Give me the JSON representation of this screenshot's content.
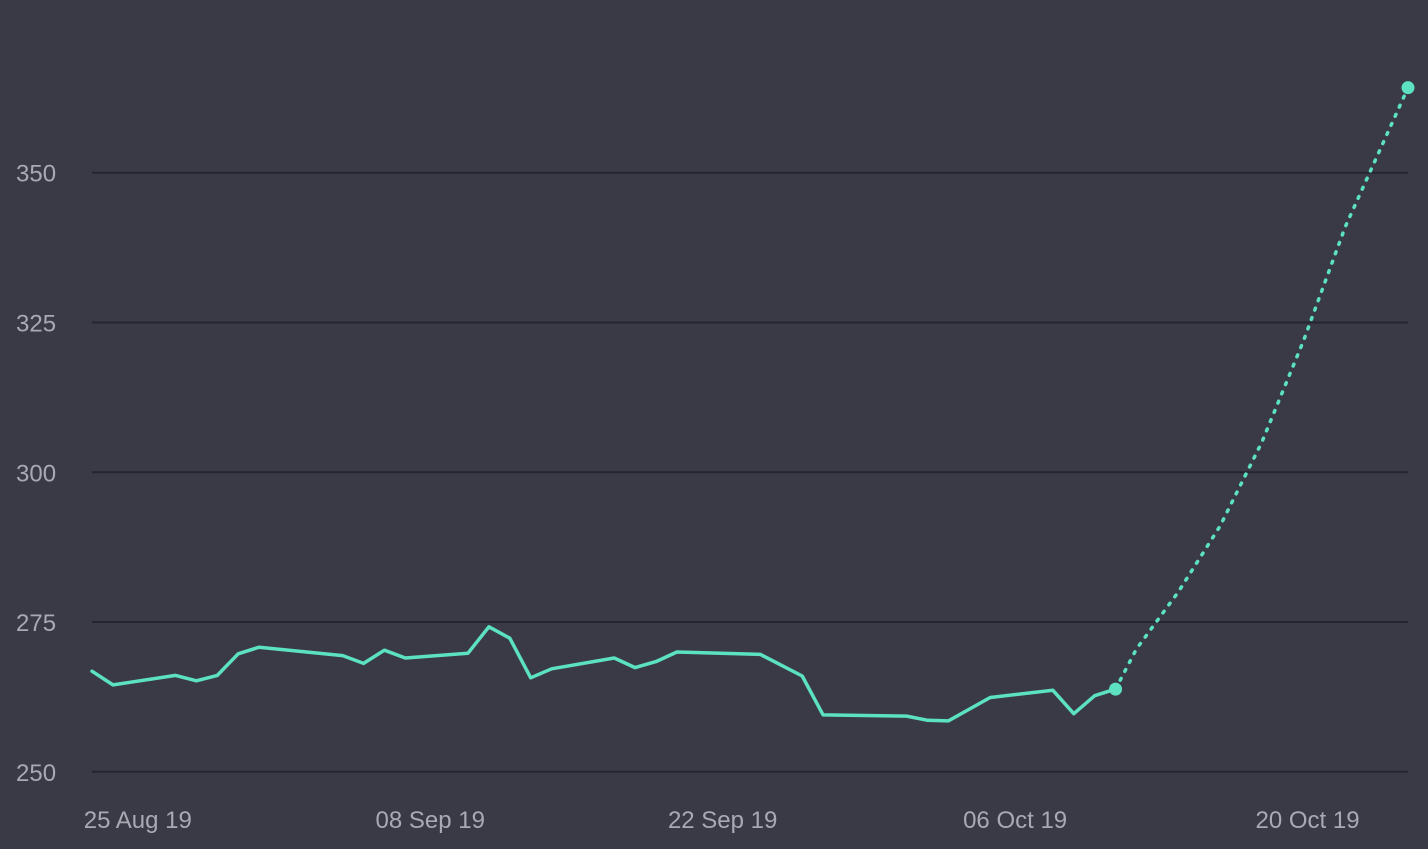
{
  "colors": {
    "background": "#3a3a46",
    "grid": "#25252e",
    "tick_label": "#a9a9b4",
    "series": "#5ce1c1"
  },
  "chart_data": {
    "type": "line",
    "title": "",
    "xlabel": "",
    "ylabel": "",
    "x_axis": "date",
    "xlim": [
      "2019-08-23",
      "2019-10-25"
    ],
    "ylim": [
      249,
      366
    ],
    "y_ticks": [
      250,
      275,
      300,
      325,
      350
    ],
    "y_tick_labels": [
      "250",
      "275",
      "300",
      "325",
      "350"
    ],
    "x_ticks": [
      "2019-08-25",
      "2019-09-08",
      "2019-09-22",
      "2019-10-06",
      "2019-10-20"
    ],
    "x_tick_labels": [
      "25 Aug 19",
      "08 Sep 19",
      "22 Sep 19",
      "06 Oct 19",
      "20 Oct 19"
    ],
    "grid": true,
    "legend": "none",
    "series": [
      {
        "style": "solid",
        "points": [
          [
            "2019-08-23",
            266.8
          ],
          [
            "2019-08-24",
            264.5
          ],
          [
            "2019-08-27",
            266.1
          ],
          [
            "2019-08-28",
            265.2
          ],
          [
            "2019-08-29",
            266.1
          ],
          [
            "2019-08-30",
            269.7
          ],
          [
            "2019-08-31",
            270.8
          ],
          [
            "2019-09-04",
            269.4
          ],
          [
            "2019-09-05",
            268.1
          ],
          [
            "2019-09-06",
            270.3
          ],
          [
            "2019-09-07",
            269.0
          ],
          [
            "2019-09-10",
            269.8
          ],
          [
            "2019-09-11",
            274.2
          ],
          [
            "2019-09-12",
            272.3
          ],
          [
            "2019-09-13",
            265.7
          ],
          [
            "2019-09-14",
            267.2
          ],
          [
            "2019-09-17",
            269.0
          ],
          [
            "2019-09-18",
            267.4
          ],
          [
            "2019-09-19",
            268.4
          ],
          [
            "2019-09-20",
            270.0
          ],
          [
            "2019-09-24",
            269.6
          ],
          [
            "2019-09-26",
            266.0
          ],
          [
            "2019-09-27",
            259.5
          ],
          [
            "2019-10-01",
            259.3
          ],
          [
            "2019-10-02",
            258.6
          ],
          [
            "2019-10-03",
            258.5
          ],
          [
            "2019-10-05",
            262.4
          ],
          [
            "2019-10-08",
            263.6
          ],
          [
            "2019-10-09",
            259.7
          ],
          [
            "2019-10-10",
            262.7
          ],
          [
            "2019-10-11",
            263.8
          ]
        ]
      },
      {
        "style": "dotted",
        "points": [
          [
            "2019-10-11",
            263.8
          ],
          [
            "2019-10-12",
            270.5
          ],
          [
            "2019-10-14",
            280.0
          ],
          [
            "2019-10-16",
            291.0
          ],
          [
            "2019-10-18",
            305.0
          ],
          [
            "2019-10-20",
            322.0
          ],
          [
            "2019-10-22",
            341.0
          ],
          [
            "2019-10-25",
            364.2
          ]
        ]
      }
    ]
  }
}
